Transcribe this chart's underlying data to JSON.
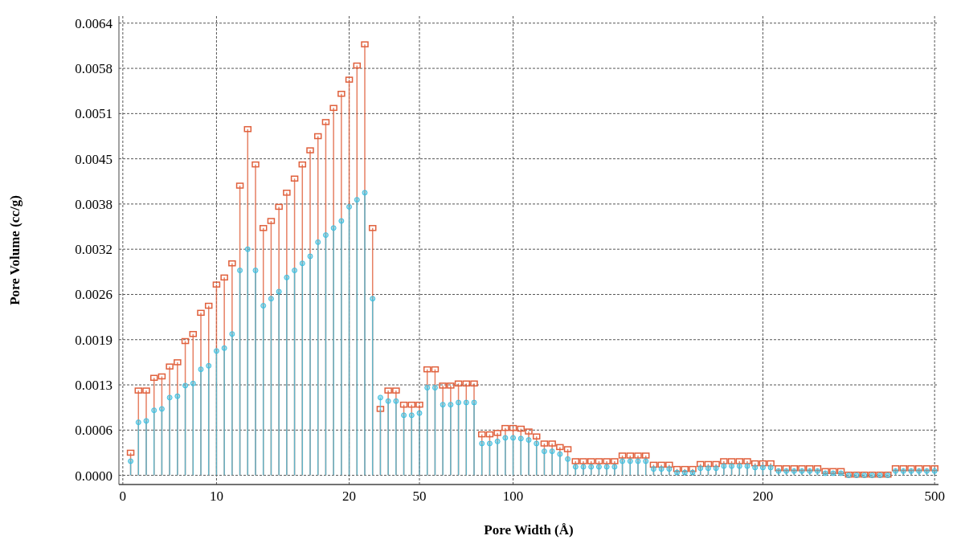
{
  "chart_data": {
    "type": "lollipop",
    "xlabel": "Pore Width (Å)",
    "ylabel": "Pore Volume (cc/g)",
    "categories": [
      "0",
      null,
      null,
      null,
      null,
      null,
      null,
      null,
      null,
      null,
      null,
      null,
      "10",
      null,
      null,
      null,
      null,
      null,
      null,
      null,
      null,
      null,
      null,
      null,
      null,
      null,
      null,
      null,
      null,
      "20",
      null,
      null,
      null,
      null,
      null,
      null,
      null,
      null,
      "50",
      null,
      null,
      null,
      null,
      null,
      null,
      null,
      null,
      null,
      null,
      null,
      "100",
      null,
      null,
      null,
      null,
      null,
      null,
      null,
      null,
      null,
      null,
      null,
      null,
      null,
      null,
      null,
      null,
      null,
      null,
      null,
      null,
      null,
      null,
      null,
      null,
      null,
      null,
      null,
      null,
      null,
      null,
      null,
      "200",
      null,
      null,
      null,
      null,
      null,
      null,
      null,
      null,
      null,
      null,
      null,
      null,
      null,
      null,
      null,
      null,
      null,
      null,
      null,
      null,
      null,
      "500"
    ],
    "series": [
      {
        "color": "#e0603c",
        "marker": "square",
        "values": [
          null,
          0.00032,
          0.0012,
          0.0012,
          0.00138,
          0.0014,
          0.00154,
          0.0016,
          0.0019,
          0.002,
          0.0023,
          0.0024,
          0.0027,
          0.0028,
          0.003,
          0.0041,
          0.0049,
          0.0044,
          0.0035,
          0.0036,
          0.0038,
          0.004,
          0.0042,
          0.0044,
          0.0046,
          0.0048,
          0.005,
          0.0052,
          0.0054,
          0.0056,
          0.0058,
          0.0061,
          0.0035,
          0.00094,
          0.0012,
          0.0012,
          0.001,
          0.001,
          0.001,
          0.0015,
          0.0015,
          0.00127,
          0.00127,
          0.0013,
          0.0013,
          0.0013,
          0.00058,
          0.00058,
          0.0006,
          0.00067,
          0.00067,
          0.00066,
          0.00062,
          0.00055,
          0.00045,
          0.00045,
          0.0004,
          0.00037,
          0.0002,
          0.0002,
          0.0002,
          0.0002,
          0.0002,
          0.0002,
          0.00028,
          0.00028,
          0.00028,
          0.00028,
          0.00015,
          0.00015,
          0.00015,
          9e-05,
          9e-05,
          9e-05,
          0.00016,
          0.00016,
          0.00016,
          0.0002,
          0.0002,
          0.0002,
          0.0002,
          0.00017,
          0.00017,
          0.00017,
          0.0001,
          0.0001,
          0.0001,
          0.0001,
          0.0001,
          0.0001,
          6e-05,
          6e-05,
          6e-05,
          1e-05,
          1e-05,
          1e-05,
          1e-05,
          1e-05,
          1e-05,
          0.0001,
          0.0001,
          0.0001,
          0.0001,
          0.0001,
          0.0001
        ]
      },
      {
        "color": "#3fbfe0",
        "marker": "circle",
        "values": [
          null,
          0.0002,
          0.00075,
          0.00077,
          0.00092,
          0.00094,
          0.0011,
          0.00112,
          0.00127,
          0.0013,
          0.0015,
          0.00155,
          0.00176,
          0.0018,
          0.002,
          0.0029,
          0.0032,
          0.0029,
          0.0024,
          0.0025,
          0.0026,
          0.0028,
          0.0029,
          0.003,
          0.0031,
          0.0033,
          0.0034,
          0.0035,
          0.0036,
          0.0038,
          0.0039,
          0.004,
          0.0025,
          0.0011,
          0.00105,
          0.00105,
          0.00085,
          0.00085,
          0.00088,
          0.00124,
          0.00124,
          0.001,
          0.001,
          0.00103,
          0.00103,
          0.00103,
          0.00045,
          0.00045,
          0.00048,
          0.00053,
          0.00053,
          0.00052,
          0.0005,
          0.00045,
          0.00034,
          0.00034,
          0.0003,
          0.00023,
          0.00012,
          0.00012,
          0.00012,
          0.00012,
          0.00012,
          0.00012,
          0.0002,
          0.0002,
          0.0002,
          0.0002,
          9e-05,
          9e-05,
          9e-05,
          4e-05,
          4e-05,
          4e-05,
          0.0001,
          0.0001,
          0.0001,
          0.00013,
          0.00013,
          0.00013,
          0.00013,
          0.00011,
          0.00011,
          0.00011,
          6e-05,
          6e-05,
          6e-05,
          6e-05,
          6e-05,
          6e-05,
          3e-05,
          3e-05,
          3e-05,
          0,
          0,
          0,
          0,
          0,
          0,
          6e-05,
          6e-05,
          6e-05,
          6e-05,
          6e-05,
          6e-05
        ]
      }
    ],
    "ylim": [
      -0.00013,
      0.0065
    ],
    "yticks": [
      {
        "value": 0,
        "label": "0.0000"
      },
      {
        "value": 0.00064,
        "label": "0.0006"
      },
      {
        "value": 0.00128,
        "label": "0.0013"
      },
      {
        "value": 0.00192,
        "label": "0.0019"
      },
      {
        "value": 0.00256,
        "label": "0.0026"
      },
      {
        "value": 0.0032,
        "label": "0.0032"
      },
      {
        "value": 0.00384,
        "label": "0.0038"
      },
      {
        "value": 0.00448,
        "label": "0.0045"
      },
      {
        "value": 0.00512,
        "label": "0.0051"
      },
      {
        "value": 0.00576,
        "label": "0.0058"
      },
      {
        "value": 0.0064,
        "label": "0.0064"
      }
    ],
    "grid": true
  }
}
